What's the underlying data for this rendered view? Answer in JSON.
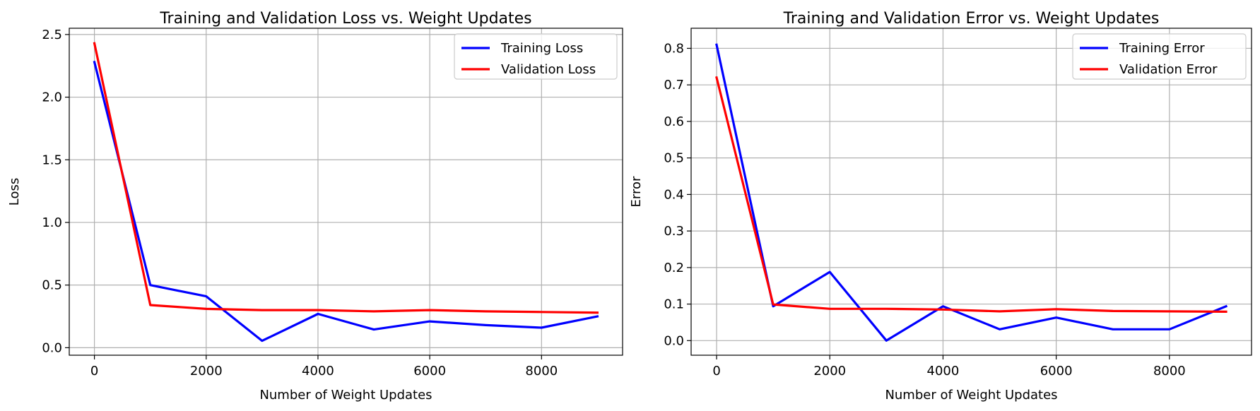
{
  "chart_data": [
    {
      "type": "line",
      "title": "Training and Validation Loss vs. Weight Updates",
      "xlabel": "Number of Weight Updates",
      "ylabel": "Loss",
      "xlim": [
        -450,
        9450
      ],
      "ylim": [
        -0.06,
        2.55
      ],
      "xticks": [
        0,
        2000,
        4000,
        6000,
        8000
      ],
      "xtick_labels": [
        "0",
        "2000",
        "4000",
        "6000",
        "8000"
      ],
      "yticks": [
        0.0,
        0.5,
        1.0,
        1.5,
        2.0,
        2.5
      ],
      "ytick_labels": [
        "0.0",
        "0.5",
        "1.0",
        "1.5",
        "2.0",
        "2.5"
      ],
      "grid": true,
      "legend_position": "top-right",
      "x": [
        0,
        1000,
        2000,
        3000,
        4000,
        5000,
        6000,
        7000,
        8000,
        9000
      ],
      "series": [
        {
          "name": "Training Loss",
          "color": "#0000ff",
          "values": [
            2.28,
            0.5,
            0.41,
            0.055,
            0.27,
            0.145,
            0.21,
            0.18,
            0.16,
            0.25
          ]
        },
        {
          "name": "Validation Loss",
          "color": "#ff0000",
          "values": [
            2.43,
            0.34,
            0.31,
            0.3,
            0.3,
            0.29,
            0.3,
            0.29,
            0.285,
            0.28
          ]
        }
      ]
    },
    {
      "type": "line",
      "title": "Training and Validation Error vs. Weight Updates",
      "xlabel": "Number of Weight Updates",
      "ylabel": "Error",
      "xlim": [
        -450,
        9450
      ],
      "ylim": [
        -0.04,
        0.855
      ],
      "xticks": [
        0,
        2000,
        4000,
        6000,
        8000
      ],
      "xtick_labels": [
        "0",
        "2000",
        "4000",
        "6000",
        "8000"
      ],
      "yticks": [
        0.0,
        0.1,
        0.2,
        0.3,
        0.4,
        0.5,
        0.6,
        0.7,
        0.8
      ],
      "ytick_labels": [
        "0.0",
        "0.1",
        "0.2",
        "0.3",
        "0.4",
        "0.5",
        "0.6",
        "0.7",
        "0.8"
      ],
      "grid": true,
      "legend_position": "top-right",
      "x": [
        0,
        1000,
        2000,
        3000,
        4000,
        5000,
        6000,
        7000,
        8000,
        9000
      ],
      "series": [
        {
          "name": "Training Error",
          "color": "#0000ff",
          "values": [
            0.81,
            0.094,
            0.188,
            0.0,
            0.094,
            0.031,
            0.063,
            0.031,
            0.031,
            0.094
          ]
        },
        {
          "name": "Validation Error",
          "color": "#ff0000",
          "values": [
            0.72,
            0.099,
            0.087,
            0.087,
            0.085,
            0.08,
            0.086,
            0.081,
            0.08,
            0.079
          ]
        }
      ]
    }
  ]
}
